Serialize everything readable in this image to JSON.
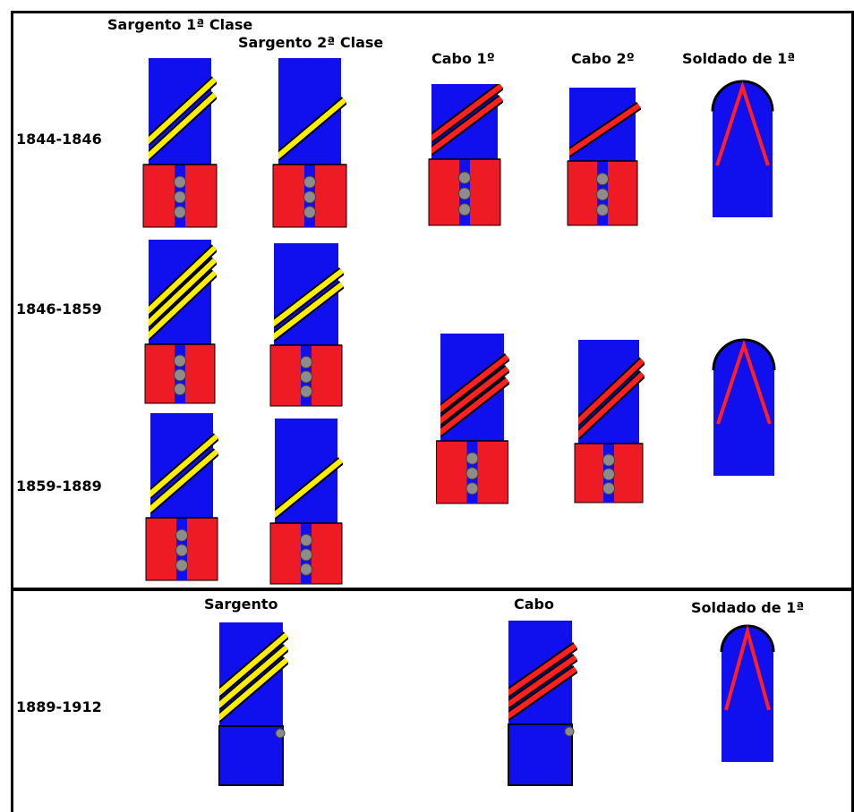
{
  "colors": {
    "cuff_blue": "#1010ee",
    "patch_red": "#ee1b24",
    "button_grey": "#8c8c8c",
    "stripe_yellow": "#ffee00",
    "stripe_red": "#ff2020",
    "outline": "#000000"
  },
  "columns": {
    "sargento_1a": "Sargento 1ª Clase",
    "sargento_2a": "Sargento 2ª Clase",
    "cabo_1": "Cabo 1º",
    "cabo_2": "Cabo 2º",
    "soldado_1": "Soldado de 1ª"
  },
  "periods": {
    "p1844": "1844-1846",
    "p1846": "1846-1859",
    "p1859": "1859-1889",
    "p1889": "1889-1912"
  },
  "bottom_columns": {
    "sargento": "Sargento",
    "cabo": "Cabo",
    "soldado": "Soldado de 1ª"
  },
  "insignia": [
    {
      "rank": "sargento_1a",
      "period": "1844-1846",
      "stripes": 2,
      "stripe_color": "yellow",
      "patch": "red with 3 buttons"
    },
    {
      "rank": "sargento_2a",
      "period": "1844-1846",
      "stripes": 1,
      "stripe_color": "yellow",
      "patch": "red with 3 buttons"
    },
    {
      "rank": "cabo_1",
      "period": "1844-1846",
      "stripes": 2,
      "stripe_color": "red",
      "patch": "red with 3 buttons"
    },
    {
      "rank": "cabo_2",
      "period": "1844-1846",
      "stripes": 1,
      "stripe_color": "red",
      "patch": "red with 3 buttons"
    },
    {
      "rank": "soldado_1",
      "period": "1844-1846",
      "stripes": 0,
      "stripe_color": "red",
      "patch": "chevron"
    },
    {
      "rank": "sargento_1a",
      "period": "1846-1859",
      "stripes": 3,
      "stripe_color": "yellow",
      "patch": "red with 3 buttons"
    },
    {
      "rank": "sargento_2a",
      "period": "1846-1859",
      "stripes": 2,
      "stripe_color": "yellow",
      "patch": "red with 3 buttons"
    },
    {
      "rank": "cabo_1",
      "period": "1846-1889",
      "stripes": 3,
      "stripe_color": "red",
      "patch": "red with 3 buttons"
    },
    {
      "rank": "cabo_2",
      "period": "1846-1889",
      "stripes": 2,
      "stripe_color": "red",
      "patch": "red with 3 buttons"
    },
    {
      "rank": "soldado_1",
      "period": "1846-1889",
      "stripes": 0,
      "stripe_color": "red",
      "patch": "chevron"
    },
    {
      "rank": "sargento_1a",
      "period": "1859-1889",
      "stripes": 2,
      "stripe_color": "yellow",
      "patch": "red with 3 buttons"
    },
    {
      "rank": "sargento_2a",
      "period": "1859-1889",
      "stripes": 1,
      "stripe_color": "yellow",
      "patch": "red with 3 buttons"
    },
    {
      "rank": "sargento",
      "period": "1889-1912",
      "stripes": 3,
      "stripe_color": "yellow",
      "patch": "blue with 1 button"
    },
    {
      "rank": "cabo",
      "period": "1889-1912",
      "stripes": 3,
      "stripe_color": "red",
      "patch": "blue with 1 button"
    },
    {
      "rank": "soldado",
      "period": "1889-1912",
      "stripes": 0,
      "stripe_color": "red",
      "patch": "chevron"
    }
  ]
}
